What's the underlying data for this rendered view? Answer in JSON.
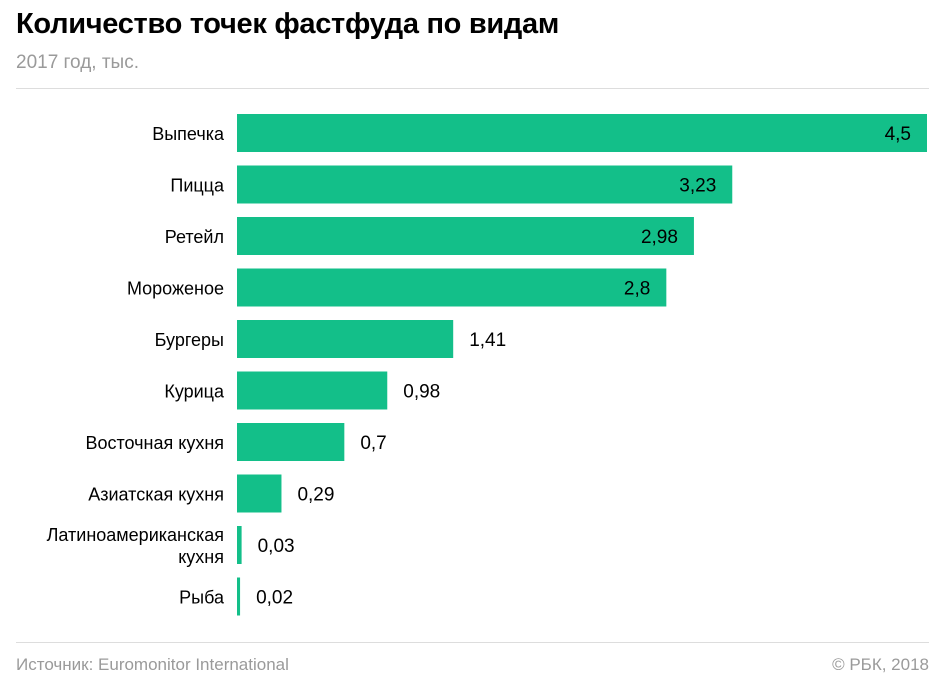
{
  "header": {
    "title": "Количество точек фастфуда по видам",
    "subtitle": "2017 год, тыс."
  },
  "footer": {
    "source": "Источник: Euromonitor International",
    "copyright": "© РБК, 2018"
  },
  "colors": {
    "bar": "#13bf89",
    "text": "#000000",
    "muted": "#9a9a9a",
    "rule": "#dddddd"
  },
  "chart_data": {
    "type": "bar",
    "orientation": "horizontal",
    "categories": [
      [
        "Выпечка"
      ],
      [
        "Пицца"
      ],
      [
        "Ретейл"
      ],
      [
        "Мороженое"
      ],
      [
        "Бургеры"
      ],
      [
        "Курица"
      ],
      [
        "Восточная кухня"
      ],
      [
        "Азиатская кухня"
      ],
      [
        "Латиноамериканская",
        "кухня"
      ],
      [
        "Рыба"
      ]
    ],
    "values": [
      4.5,
      3.23,
      2.98,
      2.8,
      1.41,
      0.98,
      0.7,
      0.29,
      0.03,
      0.02
    ],
    "value_labels": [
      "4,5",
      "3,23",
      "2,98",
      "2,8",
      "1,41",
      "0,98",
      "0,7",
      "0,29",
      "0,03",
      "0,02"
    ],
    "xlim": [
      0,
      4.5
    ],
    "grid": false,
    "legend": "none"
  }
}
